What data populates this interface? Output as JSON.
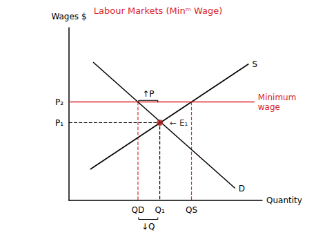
{
  "chart_data": {
    "type": "line",
    "title": "Labour Markets (Minᵐ Wage)",
    "x_label": "Quantity",
    "y_label": "Wages $",
    "xlim": [
      0,
      10
    ],
    "ylim": [
      0,
      10
    ],
    "xticks": [
      {
        "value": 3.57,
        "label": "QD"
      },
      {
        "value": 4.7,
        "label": "Q₁"
      },
      {
        "value": 6.34,
        "label": "QS"
      }
    ],
    "yticks": [
      {
        "value": 4.5,
        "label": "P₁"
      },
      {
        "value": 5.7,
        "label": "P₂"
      }
    ],
    "grid": false,
    "series": [
      {
        "name": "S",
        "color": "#000000",
        "line_style": "solid",
        "x": [
          1.1,
          9.3
        ],
        "values": [
          1.8,
          7.9
        ]
      },
      {
        "name": "D",
        "color": "#000000",
        "line_style": "solid",
        "x": [
          1.25,
          8.6
        ],
        "values": [
          8.0,
          0.7
        ]
      },
      {
        "name": "Minimum wage",
        "color": "#d9262b",
        "line_style": "solid",
        "x": [
          0,
          9.6
        ],
        "values": [
          5.7,
          5.7
        ]
      },
      {
        "color": "#000000",
        "line_style": "dashed",
        "x": [
          0,
          4.7,
          4.7
        ],
        "values": [
          4.5,
          4.5,
          0
        ]
      },
      {
        "color": "#d9262b",
        "line_style": "dashed",
        "x": [
          3.57,
          3.57
        ],
        "values": [
          5.7,
          0
        ]
      },
      {
        "color": "#d9262b",
        "line_style": "dashed",
        "x": [
          6.34,
          6.34
        ],
        "values": [
          5.7,
          0
        ]
      },
      {
        "name": "← E₁",
        "type": "scatter",
        "color": "#b01c1c",
        "x": [
          4.7
        ],
        "values": [
          4.5
        ]
      }
    ],
    "annotations": [
      {
        "text": "↑P",
        "x": 4.1,
        "y": 6.15
      },
      {
        "text": "↓Q",
        "x": 4.1,
        "y": -1.5
      }
    ]
  }
}
